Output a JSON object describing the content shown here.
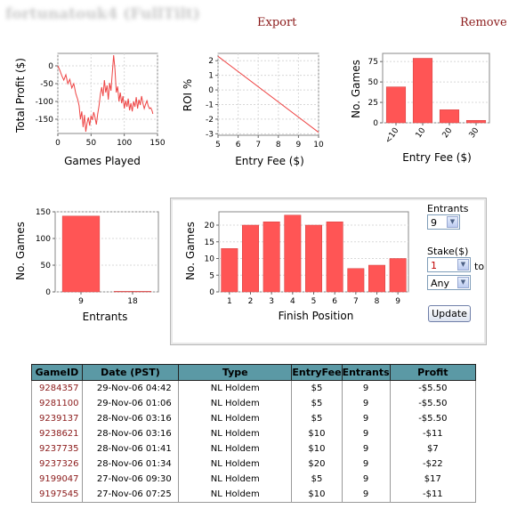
{
  "header": {
    "player_name": "fortunatouk4 (FullTilt)",
    "export_label": "Export",
    "remove_label": "Remove"
  },
  "colors": {
    "bar": "#ff5555",
    "line": "#ee4444",
    "link": "#8b1a1a",
    "table_header": "#5b99a5"
  },
  "controls": {
    "entrants_label": "Entrants",
    "entrants_value": "9",
    "stake_label": "Stake($)",
    "stake_value": "1",
    "to_label": "to",
    "stake_max_value": "Any",
    "update_label": "Update"
  },
  "chart_data": [
    {
      "type": "line",
      "xlabel": "Games Played",
      "ylabel": "Total Profit ($)",
      "xlim": [
        0,
        150
      ],
      "ylim": [
        -190,
        35
      ],
      "xticks": [
        0,
        50,
        100,
        150
      ],
      "yticks": [
        0,
        -50,
        -100,
        -150
      ],
      "grid": true,
      "x": [
        0,
        3,
        6,
        9,
        12,
        15,
        18,
        21,
        24,
        27,
        30,
        32,
        34,
        36,
        38,
        40,
        42,
        44,
        46,
        48,
        50,
        52,
        54,
        56,
        58,
        60,
        62,
        64,
        66,
        68,
        70,
        72,
        74,
        76,
        78,
        80,
        82,
        84,
        86,
        88,
        90,
        92,
        94,
        96,
        98,
        100,
        102,
        104,
        106,
        108,
        110,
        112,
        114,
        116,
        118,
        120,
        122,
        124,
        126,
        128,
        130,
        132,
        134,
        136,
        138,
        140,
        142,
        143
      ],
      "y": [
        0,
        -12,
        -28,
        -40,
        -25,
        -50,
        -38,
        -62,
        -50,
        -78,
        -95,
        -112,
        -150,
        -128,
        -172,
        -138,
        -185,
        -160,
        -145,
        -168,
        -140,
        -152,
        -130,
        -145,
        -165,
        -135,
        -112,
        -80,
        -60,
        -85,
        -40,
        -75,
        -55,
        -95,
        -48,
        -70,
        -20,
        30,
        -10,
        -75,
        -58,
        -100,
        -75,
        -105,
        -85,
        -120,
        -98,
        -115,
        -92,
        -125,
        -105,
        -128,
        -100,
        -115,
        -88,
        -120,
        -95,
        -110,
        -85,
        -105,
        -120,
        -108,
        -98,
        -112,
        -120,
        -118,
        -127,
        -135
      ]
    },
    {
      "type": "line",
      "xlabel": "Entry Fee ($)",
      "ylabel": "ROI %",
      "xlim": [
        5,
        10
      ],
      "ylim": [
        -3.1,
        2.5
      ],
      "xticks": [
        5,
        6,
        7,
        8,
        9,
        10
      ],
      "yticks": [
        2,
        1,
        0,
        -1,
        -2,
        -3
      ],
      "grid": true,
      "x": [
        5,
        10
      ],
      "y": [
        2.3,
        -2.9
      ]
    },
    {
      "type": "bar",
      "xlabel": "Entry Fee ($)",
      "ylabel": "No. Games",
      "categories": [
        "<10",
        "10",
        "20",
        "30"
      ],
      "values": [
        44,
        79,
        16,
        3
      ],
      "ylim": [
        0,
        85
      ],
      "yticks": [
        0,
        25,
        50,
        75
      ],
      "grid": true
    },
    {
      "type": "bar",
      "xlabel": "Entrants",
      "ylabel": "No. Games",
      "categories": [
        "9",
        "18"
      ],
      "values": [
        142,
        1
      ],
      "ylim": [
        0,
        150
      ],
      "yticks": [
        0,
        50,
        100,
        150
      ],
      "grid": true
    },
    {
      "type": "bar",
      "xlabel": "Finish Position",
      "ylabel": "No. Games",
      "categories": [
        "1",
        "2",
        "3",
        "4",
        "5",
        "6",
        "7",
        "8",
        "9"
      ],
      "values": [
        13,
        20,
        21,
        23,
        20,
        21,
        7,
        8,
        10
      ],
      "ylim": [
        0,
        24
      ],
      "yticks": [
        0,
        5,
        10,
        15,
        20
      ],
      "grid": true
    }
  ],
  "table": {
    "columns": [
      "GameID",
      "Date (PST)",
      "Type",
      "EntryFee",
      "Entrants",
      "Profit"
    ],
    "rows": [
      [
        "9284357",
        "29-Nov-06  04:42",
        "NL  Holdem",
        "$5",
        "9",
        "-$5.50"
      ],
      [
        "9281100",
        "29-Nov-06  01:06",
        "NL  Holdem",
        "$5",
        "9",
        "-$5.50"
      ],
      [
        "9239137",
        "28-Nov-06  03:16",
        "NL  Holdem",
        "$5",
        "9",
        "-$5.50"
      ],
      [
        "9238621",
        "28-Nov-06  03:16",
        "NL  Holdem",
        "$10",
        "9",
        "-$11"
      ],
      [
        "9237735",
        "28-Nov-06  01:41",
        "NL  Holdem",
        "$10",
        "9",
        "$7"
      ],
      [
        "9237326",
        "28-Nov-06  01:34",
        "NL  Holdem",
        "$20",
        "9",
        "-$22"
      ],
      [
        "9199047",
        "27-Nov-06  09:30",
        "NL  Holdem",
        "$5",
        "9",
        "$17"
      ],
      [
        "9197545",
        "27-Nov-06  07:25",
        "NL  Holdem",
        "$10",
        "9",
        "-$11"
      ]
    ]
  }
}
